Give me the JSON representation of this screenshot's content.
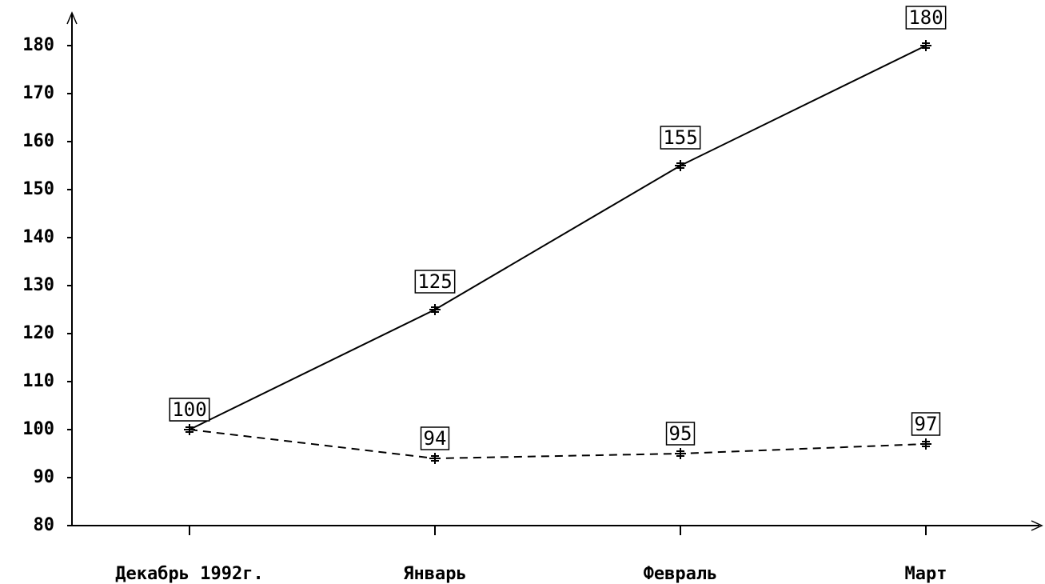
{
  "chart_data": {
    "type": "line",
    "categories": [
      "Декабрь 1992г.",
      "Январь",
      "Февраль",
      "Март"
    ],
    "series": [
      {
        "color": "#000000",
        "dash": false,
        "values": [
          100,
          125,
          155,
          180
        ]
      },
      {
        "color": "#000000",
        "dash": true,
        "values": [
          100,
          94,
          95,
          97
        ]
      }
    ],
    "ylim": [
      80,
      180
    ],
    "yticks": [
      80,
      90,
      100,
      110,
      120,
      130,
      140,
      150,
      160,
      170,
      180
    ],
    "grid": false
  }
}
